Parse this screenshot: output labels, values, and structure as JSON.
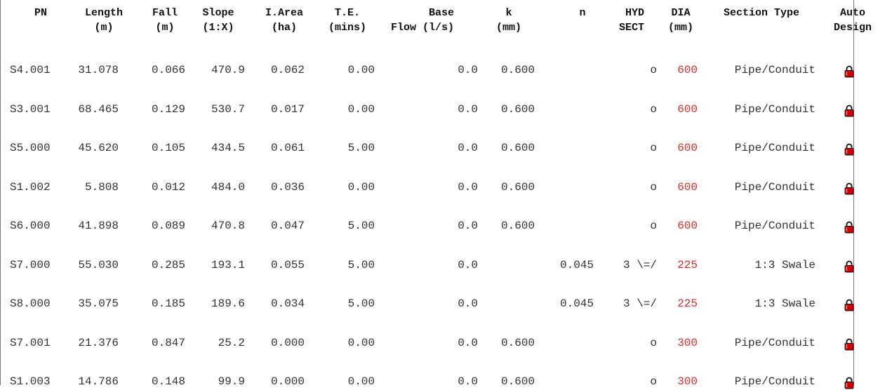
{
  "headers": [
    {
      "key": "pn",
      "line1": "PN",
      "line2": ""
    },
    {
      "key": "length",
      "line1": "Length",
      "line2": "(m)"
    },
    {
      "key": "fall",
      "line1": "Fall",
      "line2": "(m)"
    },
    {
      "key": "slope",
      "line1": "Slope",
      "line2": "(1:X)"
    },
    {
      "key": "iarea",
      "line1": "I.Area",
      "line2": "(ha)"
    },
    {
      "key": "te",
      "line1": "T.E.",
      "line2": "(mins)"
    },
    {
      "key": "baseflow",
      "line1": "Base",
      "line2": "Flow (l/s)"
    },
    {
      "key": "k",
      "line1": "k",
      "line2": "(mm)"
    },
    {
      "key": "n",
      "line1": "n",
      "line2": ""
    },
    {
      "key": "hyd",
      "line1": "HYD",
      "line2": "SECT"
    },
    {
      "key": "dia",
      "line1": "DIA",
      "line2": "(mm)"
    },
    {
      "key": "section",
      "line1": "Section Type",
      "line2": ""
    },
    {
      "key": "auto",
      "line1": "Auto",
      "line2": "Design"
    }
  ],
  "rows": [
    {
      "pn": "S4.001",
      "length": "31.078",
      "fall": "0.066",
      "slope": "470.9",
      "iarea": "0.062",
      "te": "0.00",
      "baseflow": "0.0",
      "k": "0.600",
      "n": "",
      "hyd": "o",
      "dia": "600",
      "section": "Pipe/Conduit"
    },
    {
      "pn": "S3.001",
      "length": "68.465",
      "fall": "0.129",
      "slope": "530.7",
      "iarea": "0.017",
      "te": "0.00",
      "baseflow": "0.0",
      "k": "0.600",
      "n": "",
      "hyd": "o",
      "dia": "600",
      "section": "Pipe/Conduit"
    },
    {
      "pn": "S5.000",
      "length": "45.620",
      "fall": "0.105",
      "slope": "434.5",
      "iarea": "0.061",
      "te": "5.00",
      "baseflow": "0.0",
      "k": "0.600",
      "n": "",
      "hyd": "o",
      "dia": "600",
      "section": "Pipe/Conduit"
    },
    {
      "pn": "S1.002",
      "length": "5.808",
      "fall": "0.012",
      "slope": "484.0",
      "iarea": "0.036",
      "te": "0.00",
      "baseflow": "0.0",
      "k": "0.600",
      "n": "",
      "hyd": "o",
      "dia": "600",
      "section": "Pipe/Conduit"
    },
    {
      "pn": "S6.000",
      "length": "41.898",
      "fall": "0.089",
      "slope": "470.8",
      "iarea": "0.047",
      "te": "5.00",
      "baseflow": "0.0",
      "k": "0.600",
      "n": "",
      "hyd": "o",
      "dia": "600",
      "section": "Pipe/Conduit"
    },
    {
      "pn": "S7.000",
      "length": "55.030",
      "fall": "0.285",
      "slope": "193.1",
      "iarea": "0.055",
      "te": "5.00",
      "baseflow": "0.0",
      "k": "",
      "n": "0.045",
      "hyd": "3 \\=/",
      "dia": "225",
      "section": "1:3 Swale"
    },
    {
      "pn": "S8.000",
      "length": "35.075",
      "fall": "0.185",
      "slope": "189.6",
      "iarea": "0.034",
      "te": "5.00",
      "baseflow": "0.0",
      "k": "",
      "n": "0.045",
      "hyd": "3 \\=/",
      "dia": "225",
      "section": "1:3 Swale"
    },
    {
      "pn": "S7.001",
      "length": "21.376",
      "fall": "0.847",
      "slope": "25.2",
      "iarea": "0.000",
      "te": "0.00",
      "baseflow": "0.0",
      "k": "0.600",
      "n": "",
      "hyd": "o",
      "dia": "300",
      "section": "Pipe/Conduit"
    },
    {
      "pn": "S1.003",
      "length": "14.786",
      "fall": "0.148",
      "slope": "99.9",
      "iarea": "0.000",
      "te": "0.00",
      "baseflow": "0.0",
      "k": "0.600",
      "n": "",
      "hyd": "o",
      "dia": "300",
      "section": "Pipe/Conduit"
    }
  ],
  "colors": {
    "dia": "#d0312d",
    "lock": "#cc0000"
  },
  "icons": {
    "auto_design": "padlock-icon"
  }
}
